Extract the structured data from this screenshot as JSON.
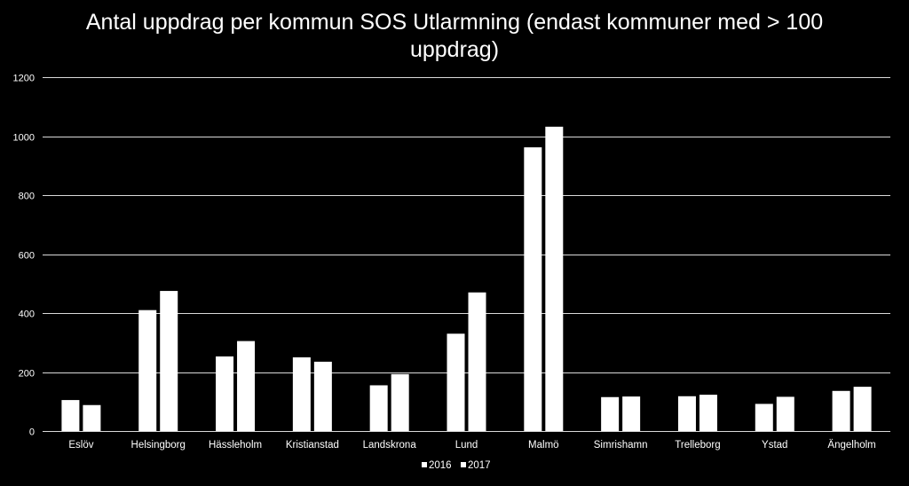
{
  "chart_data": {
    "type": "bar",
    "title": "Antal uppdrag per kommun SOS Utlarmning (endast kommuner med > 100 uppdrag)",
    "xlabel": "",
    "ylabel": "",
    "ylim": [
      0,
      1200
    ],
    "yticks": [
      0,
      200,
      400,
      600,
      800,
      1000,
      1200
    ],
    "grid": true,
    "legend_position": "bottom",
    "categories": [
      "Eslöv",
      "Helsingborg",
      "Hässleholm",
      "Kristianstad",
      "Landskrona",
      "Lund",
      "Malmö",
      "Simrishamn",
      "Trelleborg",
      "Ystad",
      "Ängelholm"
    ],
    "series": [
      {
        "name": "2016",
        "color": "#ffffff",
        "values": [
          105,
          410,
          253,
          250,
          155,
          330,
          962,
          115,
          118,
          92,
          136
        ]
      },
      {
        "name": "2017",
        "color": "#ffffff",
        "values": [
          88,
          475,
          305,
          235,
          193,
          470,
          1032,
          117,
          123,
          116,
          150
        ]
      }
    ]
  },
  "colors": {
    "background": "#000000",
    "gridline": "#d9d9d9",
    "bar": "#ffffff",
    "text": "#ffffff"
  }
}
